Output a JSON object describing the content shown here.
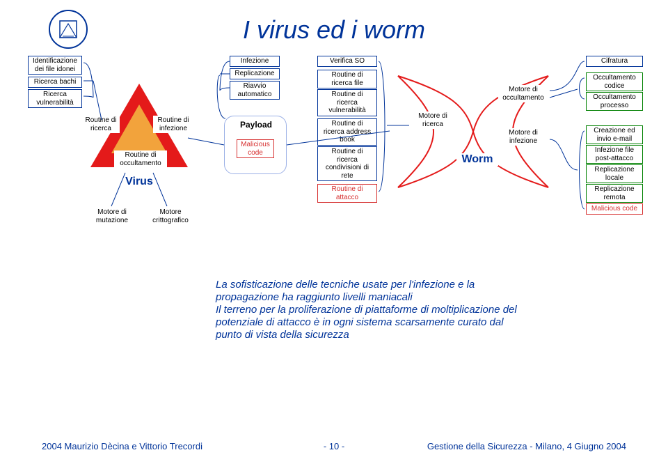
{
  "title": "I virus ed i worm",
  "colors": {
    "blue": "#003399",
    "red": "#d62e2e",
    "green_border": "#008000",
    "red_fill": "#e41a1a",
    "orange": "#f2a33c"
  },
  "virus": {
    "left_tags": [
      "Identificazione\ndei file idonei",
      "Ricerca bachi",
      "Ricerca\nvulnerabilità"
    ],
    "triangle_labels": {
      "left": "Routine di\nricerca",
      "right": "Routine di\ninfezione",
      "bottom": "Routine di\noccultamento"
    },
    "name": "Virus",
    "bottom_left": "Motore di\nmutazione",
    "bottom_right": "Motore\ncrittografico"
  },
  "payload": {
    "top_tags": [
      "Infezione",
      "Replicazione",
      "Riavvio\nautomatico"
    ],
    "name": "Payload",
    "inner": "Malicious\ncode"
  },
  "center_tags": [
    "Verifica SO",
    "Routine di\nricerca file",
    "Routine di\nricerca\nvulnerabilità",
    "Routine di\nricerca address\nbook",
    "Routine di\nricerca\ncondivisioni di\nrete",
    "Routine di\nattacco"
  ],
  "worm": {
    "left": "Motore di\nricerca",
    "right_top": "Motore di\noccultamento",
    "right_bottom": "Motore di\ninfezione",
    "name": "Worm"
  },
  "right_tags": {
    "top": "Cifratura",
    "group_top": [
      "Occultamento\ncodice",
      "Occultamento\nprocesso"
    ],
    "group_bottom": [
      "Creazione ed\ninvio e-mail",
      "Infezione file\npost-attacco",
      "Replicazione\nlocale",
      "Replicazione\nremota",
      "Malicious code"
    ]
  },
  "body": "La sofisticazione delle tecniche usate per l'infezione e la propagazione ha raggiunto livelli maniacali\nIl terreno per la proliferazione di piattaforme di moltiplicazione del potenziale di attacco è in ogni sistema scarsamente curato dal punto di vista della sicurezza",
  "footer": {
    "left": "2004 Maurizio Dècina e Vittorio Trecordi",
    "center": "- 10 -",
    "right": "Gestione della Sicurezza - Milano, 4 Giugno 2004"
  }
}
